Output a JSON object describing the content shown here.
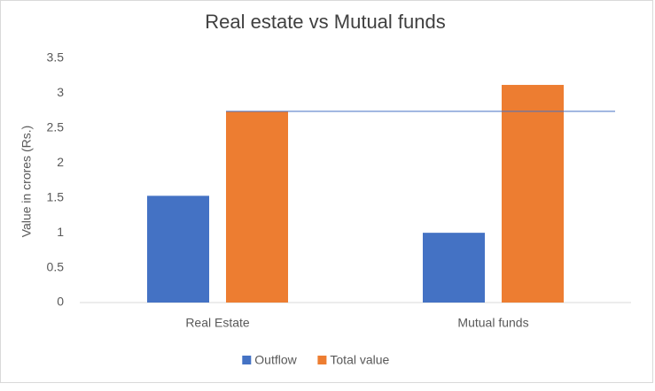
{
  "chart_data": {
    "type": "bar",
    "title": "Real estate vs Mutual funds",
    "y_label": "Value in crores (Rs.)",
    "categories": [
      "Real Estate",
      "Mutual funds"
    ],
    "series": [
      {
        "name": "Outflow",
        "color": "#4472c4",
        "values": [
          1.53,
          1.0
        ]
      },
      {
        "name": "Total value",
        "color": "#ed7d31",
        "values": [
          2.74,
          3.12
        ]
      }
    ],
    "ylim": [
      0,
      3.5
    ],
    "yticks": [
      0,
      0.5,
      1,
      1.5,
      2,
      2.5,
      3,
      3.5
    ],
    "grid": false,
    "legend": "bottom"
  }
}
